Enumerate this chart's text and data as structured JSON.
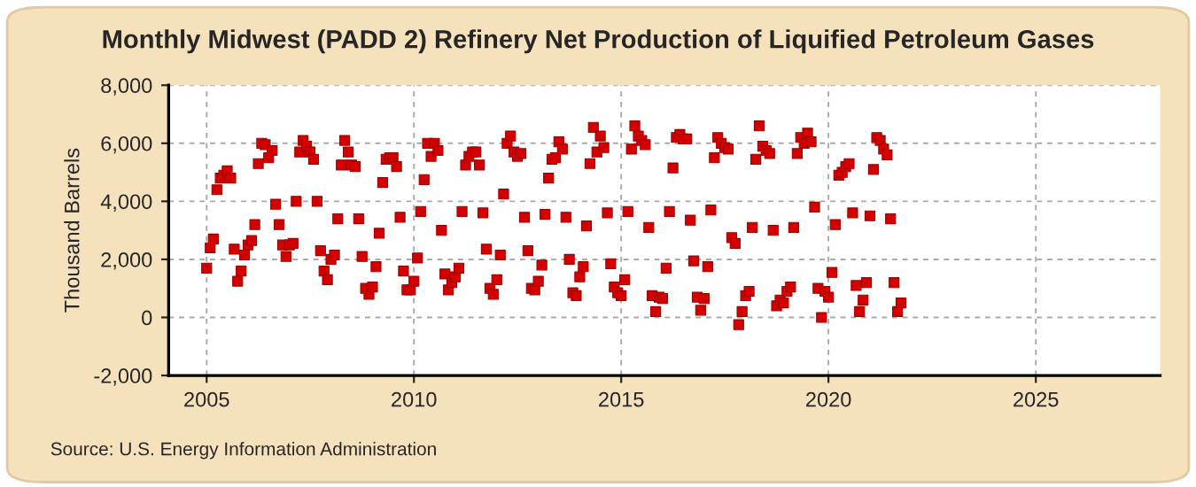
{
  "chart_data": {
    "type": "scatter",
    "title": "Monthly Midwest (PADD 2) Refinery Net Production of Liquified Petroleum Gases",
    "ylabel": "Thousand Barrels",
    "annotations": [
      "Source: U.S. Energy Information Administration"
    ],
    "marker": "square",
    "grid": true,
    "xlim": [
      "2004-02",
      "2028-01"
    ],
    "xticks": [
      "2005",
      "2010",
      "2015",
      "2020",
      "2025"
    ],
    "ylim": [
      -2000,
      8000
    ],
    "yticks": [
      {
        "value": -2000,
        "label": "-2,000"
      },
      0,
      {
        "value": 2000,
        "label": "2,000"
      },
      {
        "value": 4000,
        "label": "4,000"
      },
      {
        "value": 6000,
        "label": "6,000"
      },
      {
        "value": 8000,
        "label": "8,000"
      }
    ],
    "x": [
      "2005-01",
      "2005-02",
      "2005-03",
      "2005-04",
      "2005-05",
      "2005-06",
      "2005-07",
      "2005-08",
      "2005-09",
      "2005-10",
      "2005-11",
      "2005-12",
      "2006-01",
      "2006-02",
      "2006-03",
      "2006-04",
      "2006-05",
      "2006-06",
      "2006-07",
      "2006-08",
      "2006-09",
      "2006-10",
      "2006-11",
      "2006-12",
      "2007-01",
      "2007-02",
      "2007-03",
      "2007-04",
      "2007-05",
      "2007-06",
      "2007-07",
      "2007-08",
      "2007-09",
      "2007-10",
      "2007-11",
      "2007-12",
      "2008-01",
      "2008-02",
      "2008-03",
      "2008-04",
      "2008-05",
      "2008-06",
      "2008-07",
      "2008-08",
      "2008-09",
      "2008-10",
      "2008-11",
      "2008-12",
      "2009-01",
      "2009-02",
      "2009-03",
      "2009-04",
      "2009-05",
      "2009-06",
      "2009-07",
      "2009-08",
      "2009-09",
      "2009-10",
      "2009-11",
      "2009-12",
      "2010-01",
      "2010-02",
      "2010-03",
      "2010-04",
      "2010-05",
      "2010-06",
      "2010-07",
      "2010-08",
      "2010-09",
      "2010-10",
      "2010-11",
      "2010-12",
      "2011-01",
      "2011-02",
      "2011-03",
      "2011-04",
      "2011-05",
      "2011-06",
      "2011-07",
      "2011-08",
      "2011-09",
      "2011-10",
      "2011-11",
      "2011-12",
      "2012-01",
      "2012-02",
      "2012-03",
      "2012-04",
      "2012-05",
      "2012-06",
      "2012-07",
      "2012-08",
      "2012-09",
      "2012-10",
      "2012-11",
      "2012-12",
      "2013-01",
      "2013-02",
      "2013-03",
      "2013-04",
      "2013-05",
      "2013-06",
      "2013-07",
      "2013-08",
      "2013-09",
      "2013-10",
      "2013-11",
      "2013-12",
      "2014-01",
      "2014-02",
      "2014-03",
      "2014-04",
      "2014-05",
      "2014-06",
      "2014-07",
      "2014-08",
      "2014-09",
      "2014-10",
      "2014-11",
      "2014-12",
      "2015-01",
      "2015-02",
      "2015-03",
      "2015-04",
      "2015-05",
      "2015-06",
      "2015-07",
      "2015-08",
      "2015-09",
      "2015-10",
      "2015-11",
      "2015-12",
      "2016-01",
      "2016-02",
      "2016-03",
      "2016-04",
      "2016-05",
      "2016-06",
      "2016-07",
      "2016-08",
      "2016-09",
      "2016-10",
      "2016-11",
      "2016-12",
      "2017-01",
      "2017-02",
      "2017-03",
      "2017-04",
      "2017-05",
      "2017-06",
      "2017-07",
      "2017-08",
      "2017-09",
      "2017-10",
      "2017-11",
      "2017-12",
      "2018-01",
      "2018-02",
      "2018-03",
      "2018-04",
      "2018-05",
      "2018-06",
      "2018-07",
      "2018-08",
      "2018-09",
      "2018-10",
      "2018-11",
      "2018-12",
      "2019-01",
      "2019-02",
      "2019-03",
      "2019-04",
      "2019-05",
      "2019-06",
      "2019-07",
      "2019-08",
      "2019-09",
      "2019-10",
      "2019-11",
      "2019-12",
      "2020-01",
      "2020-02",
      "2020-03",
      "2020-04",
      "2020-05",
      "2020-06",
      "2020-07",
      "2020-08",
      "2020-09",
      "2020-10",
      "2020-11",
      "2020-12",
      "2021-01",
      "2021-02",
      "2021-03",
      "2021-04",
      "2021-05",
      "2021-06",
      "2021-07",
      "2021-08",
      "2021-09",
      "2021-10"
    ],
    "series": [
      {
        "color": "#d40000",
        "values": [
          1700,
          2400,
          2700,
          4400,
          4800,
          4900,
          5050,
          4800,
          2350,
          1250,
          1600,
          2150,
          2500,
          2650,
          3200,
          5300,
          6000,
          5950,
          5500,
          5750,
          3900,
          3200,
          2500,
          2100,
          2500,
          2550,
          4000,
          5700,
          6100,
          5900,
          5700,
          5450,
          4000,
          2300,
          1600,
          1300,
          2000,
          2150,
          3400,
          5250,
          6100,
          5700,
          5250,
          5200,
          3400,
          2100,
          1000,
          800,
          1050,
          1750,
          2900,
          4650,
          5450,
          5500,
          5500,
          5200,
          3450,
          1600,
          950,
          950,
          1250,
          2050,
          3650,
          4750,
          6000,
          5550,
          6000,
          5750,
          3000,
          1500,
          950,
          1200,
          1400,
          1700,
          3650,
          5250,
          5550,
          5700,
          5700,
          5250,
          3600,
          2350,
          1000,
          800,
          1300,
          2150,
          4250,
          6000,
          6250,
          5700,
          5550,
          5650,
          3450,
          2300,
          1000,
          950,
          1250,
          1800,
          3550,
          4800,
          5450,
          5500,
          6050,
          5800,
          3450,
          2000,
          850,
          750,
          1400,
          1750,
          3150,
          5300,
          6550,
          5700,
          6250,
          5850,
          3600,
          1850,
          1050,
          850,
          750,
          1300,
          3650,
          5800,
          6600,
          6250,
          6100,
          5950,
          3100,
          750,
          200,
          700,
          650,
          1700,
          3650,
          5150,
          6200,
          6300,
          6150,
          6150,
          3350,
          1950,
          700,
          250,
          650,
          1750,
          3700,
          5500,
          6200,
          6000,
          5850,
          5800,
          2750,
          2550,
          -250,
          200,
          750,
          900,
          3100,
          5450,
          6600,
          5900,
          5750,
          5650,
          3000,
          400,
          600,
          500,
          900,
          1050,
          3100,
          5650,
          6200,
          6000,
          6350,
          6050,
          3800,
          1000,
          0,
          900,
          700,
          1550,
          3200,
          4900,
          5000,
          5200,
          5300,
          3600,
          1100,
          200,
          600,
          1200,
          3500,
          5100,
          6200,
          6100,
          5800,
          5600,
          3400,
          1200,
          200,
          500
        ]
      }
    ]
  }
}
